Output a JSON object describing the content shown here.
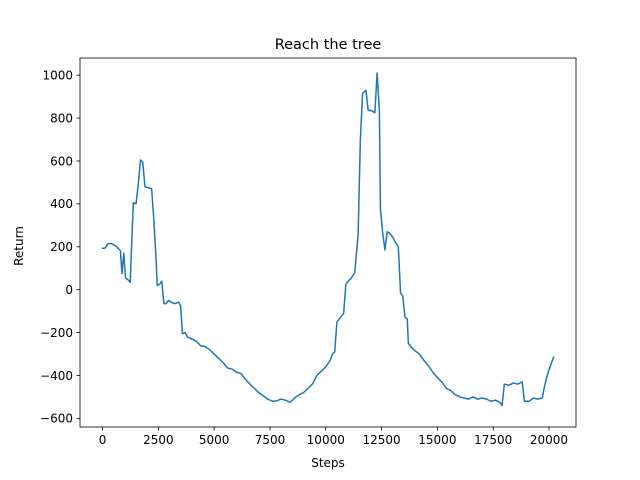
{
  "chart_data": {
    "type": "line",
    "title": "Reach the tree",
    "xlabel": "Steps",
    "ylabel": "Return",
    "xlim": [
      -1010,
      21210
    ],
    "ylim": [
      -640,
      1080
    ],
    "grid": false,
    "x_ticks": [
      0,
      2500,
      5000,
      7500,
      10000,
      12500,
      15000,
      17500,
      20000
    ],
    "y_ticks": [
      -600,
      -400,
      -200,
      0,
      200,
      400,
      600,
      800,
      1000
    ],
    "series": [
      {
        "color": "#1f77b4",
        "points": [
          [
            0,
            193
          ],
          [
            100,
            193
          ],
          [
            250,
            215
          ],
          [
            400,
            215
          ],
          [
            550,
            207
          ],
          [
            700,
            193
          ],
          [
            800,
            182
          ],
          [
            870,
            75
          ],
          [
            950,
            170
          ],
          [
            1030,
            55
          ],
          [
            1150,
            45
          ],
          [
            1240,
            35
          ],
          [
            1300,
            200
          ],
          [
            1380,
            405
          ],
          [
            1500,
            400
          ],
          [
            1600,
            490
          ],
          [
            1700,
            605
          ],
          [
            1800,
            595
          ],
          [
            1900,
            480
          ],
          [
            2050,
            475
          ],
          [
            2200,
            470
          ],
          [
            2300,
            320
          ],
          [
            2400,
            140
          ],
          [
            2450,
            20
          ],
          [
            2550,
            25
          ],
          [
            2650,
            40
          ],
          [
            2750,
            -65
          ],
          [
            2850,
            -65
          ],
          [
            2950,
            -50
          ],
          [
            3100,
            -60
          ],
          [
            3250,
            -65
          ],
          [
            3400,
            -58
          ],
          [
            3500,
            -75
          ],
          [
            3580,
            -205
          ],
          [
            3700,
            -200
          ],
          [
            3800,
            -220
          ],
          [
            4000,
            -230
          ],
          [
            4200,
            -240
          ],
          [
            4400,
            -262
          ],
          [
            4600,
            -265
          ],
          [
            4800,
            -280
          ],
          [
            5000,
            -300
          ],
          [
            5200,
            -320
          ],
          [
            5400,
            -340
          ],
          [
            5600,
            -365
          ],
          [
            5800,
            -370
          ],
          [
            6000,
            -385
          ],
          [
            6200,
            -390
          ],
          [
            6400,
            -418
          ],
          [
            6600,
            -440
          ],
          [
            6800,
            -460
          ],
          [
            7000,
            -480
          ],
          [
            7200,
            -495
          ],
          [
            7400,
            -510
          ],
          [
            7600,
            -520
          ],
          [
            7800,
            -518
          ],
          [
            8000,
            -510
          ],
          [
            8200,
            -515
          ],
          [
            8400,
            -525
          ],
          [
            8600,
            -505
          ],
          [
            8800,
            -490
          ],
          [
            9000,
            -480
          ],
          [
            9200,
            -460
          ],
          [
            9400,
            -440
          ],
          [
            9600,
            -400
          ],
          [
            9800,
            -380
          ],
          [
            10000,
            -360
          ],
          [
            10200,
            -330
          ],
          [
            10300,
            -300
          ],
          [
            10400,
            -290
          ],
          [
            10500,
            -150
          ],
          [
            10650,
            -130
          ],
          [
            10800,
            -110
          ],
          [
            10900,
            25
          ],
          [
            11000,
            40
          ],
          [
            11150,
            55
          ],
          [
            11300,
            80
          ],
          [
            11450,
            260
          ],
          [
            11550,
            700
          ],
          [
            11650,
            915
          ],
          [
            11800,
            930
          ],
          [
            11900,
            835
          ],
          [
            12050,
            835
          ],
          [
            12200,
            825
          ],
          [
            12300,
            1010
          ],
          [
            12400,
            840
          ],
          [
            12450,
            375
          ],
          [
            12550,
            265
          ],
          [
            12650,
            185
          ],
          [
            12750,
            270
          ],
          [
            12850,
            265
          ],
          [
            13000,
            245
          ],
          [
            13150,
            215
          ],
          [
            13250,
            200
          ],
          [
            13350,
            -15
          ],
          [
            13450,
            -30
          ],
          [
            13550,
            -130
          ],
          [
            13650,
            -135
          ],
          [
            13700,
            -250
          ],
          [
            13850,
            -270
          ],
          [
            14000,
            -285
          ],
          [
            14200,
            -300
          ],
          [
            14400,
            -330
          ],
          [
            14600,
            -355
          ],
          [
            14800,
            -385
          ],
          [
            15000,
            -410
          ],
          [
            15200,
            -430
          ],
          [
            15400,
            -460
          ],
          [
            15600,
            -470
          ],
          [
            15800,
            -490
          ],
          [
            16000,
            -500
          ],
          [
            16200,
            -505
          ],
          [
            16400,
            -510
          ],
          [
            16600,
            -500
          ],
          [
            16800,
            -510
          ],
          [
            17000,
            -505
          ],
          [
            17200,
            -510
          ],
          [
            17400,
            -520
          ],
          [
            17600,
            -515
          ],
          [
            17800,
            -525
          ],
          [
            17900,
            -540
          ],
          [
            18000,
            -440
          ],
          [
            18200,
            -445
          ],
          [
            18400,
            -435
          ],
          [
            18600,
            -440
          ],
          [
            18800,
            -430
          ],
          [
            18900,
            -520
          ],
          [
            19100,
            -520
          ],
          [
            19300,
            -505
          ],
          [
            19500,
            -510
          ],
          [
            19700,
            -505
          ],
          [
            19800,
            -450
          ],
          [
            19950,
            -390
          ],
          [
            20100,
            -345
          ],
          [
            20200,
            -315
          ]
        ]
      }
    ]
  }
}
